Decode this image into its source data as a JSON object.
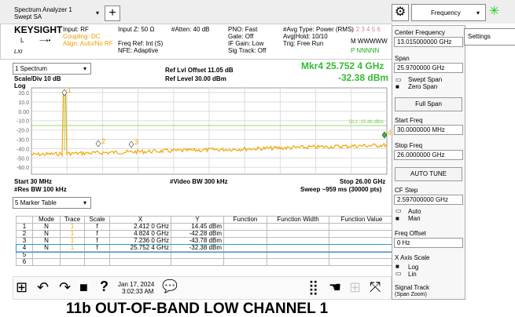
{
  "header": {
    "app": "Spectrum Analyzer 1",
    "mode": "Swept SA",
    "menu": "Frequency"
  },
  "info": {
    "brand": "KEYSIGHT",
    "l": "L",
    "lxi": "LXI",
    "input": [
      "Input: RF",
      "Coupling: DC",
      "Align: Auto/No RF"
    ],
    "input_z": [
      "Input Z: 50 Ω",
      "Freq Ref: Int (S)",
      "NFE: Adaptive"
    ],
    "atten": "#Atten: 40 dB",
    "gate": [
      "PNO: Fast",
      "Gate: Off",
      "IF Gain: Low",
      "Sig Track: Off"
    ],
    "avg": [
      "#Avg Type: Power (RMS)",
      "Avg|Hold: 10/10",
      "Trig: Free Run"
    ],
    "traces": "1 2 3 4 5 6",
    "trace_types": "M WWWWW",
    "detectors": "P NNNNN"
  },
  "plot": {
    "window": "1 Spectrum",
    "scale": "Scale/Div 10 dB",
    "scale_type": "Log",
    "ref_offset": "Ref Lvl Offset 11.05 dB",
    "ref_level": "Ref Level 30.00 dBm",
    "marker_freq": "Mkr4  25.752 4 GHz",
    "marker_amp": "-32.38 dBm",
    "y_labels": [
      "20.0",
      "10.0",
      "0.00",
      "-10.0",
      "-20.0",
      "-30.0",
      "-40.0",
      "-50.0",
      "-60.0"
    ],
    "display_line": "DL1 -15.46 dBm",
    "markers": [
      "1",
      "2",
      "3",
      "4"
    ],
    "start": "Start 30 MHz",
    "rbw": "#Res BW 100 kHz",
    "vbw": "#Video BW 300 kHz",
    "stop": "Stop 26.00 GHz",
    "sweep": "Sweep ~959 ms (30000 pts)"
  },
  "marker_table": {
    "selector": "5 Marker Table",
    "columns": [
      "Mode",
      "Trace",
      "Scale",
      "X",
      "Y",
      "Function",
      "Function Width",
      "Function Value"
    ],
    "rows": [
      {
        "n": "1",
        "mode": "N",
        "trace": "1",
        "scale": "f",
        "x": "2.412 0 GHz",
        "y": "14.45 dBm"
      },
      {
        "n": "2",
        "mode": "N",
        "trace": "1",
        "scale": "f",
        "x": "4.824 0 GHz",
        "y": "-42.28 dBm"
      },
      {
        "n": "3",
        "mode": "N",
        "trace": "1",
        "scale": "f",
        "x": "7.236 0 GHz",
        "y": "-43.78 dBm"
      },
      {
        "n": "4",
        "mode": "N",
        "trace": "1",
        "scale": "f",
        "x": "25.752 4 GHz",
        "y": "-32.38 dBm"
      },
      {
        "n": "5"
      },
      {
        "n": "6"
      }
    ]
  },
  "toolbar": {
    "date": "Jan 17, 2024",
    "time": "3:02:33 AM"
  },
  "side_panel": {
    "center_label": "Center Frequency",
    "center_value": "13.015000000 GHz",
    "span_label": "Span",
    "span_value": "25.9700000 GHz",
    "swept_span": "Swept Span",
    "zero_span": "Zero Span",
    "full_span": "Full Span",
    "start_label": "Start Freq",
    "start_value": "30.0000000 MHz",
    "stop_label": "Stop Freq",
    "stop_value": "26.0000000 GHz",
    "auto_tune": "AUTO TUNE",
    "cf_step_label": "CF Step",
    "cf_step_value": "2.597000000 GHz",
    "auto": "Auto",
    "man": "Man",
    "offset_label": "Freq Offset",
    "offset_value": "0 Hz",
    "x_scale_label": "X Axis Scale",
    "log": "Log",
    "lin": "Lin",
    "signal_track": "Signal Track",
    "span_zoom": "(Span Zoom)"
  },
  "tab": "Settings",
  "caption": "11b OUT-OF-BAND LOW CHANNEL 1"
}
